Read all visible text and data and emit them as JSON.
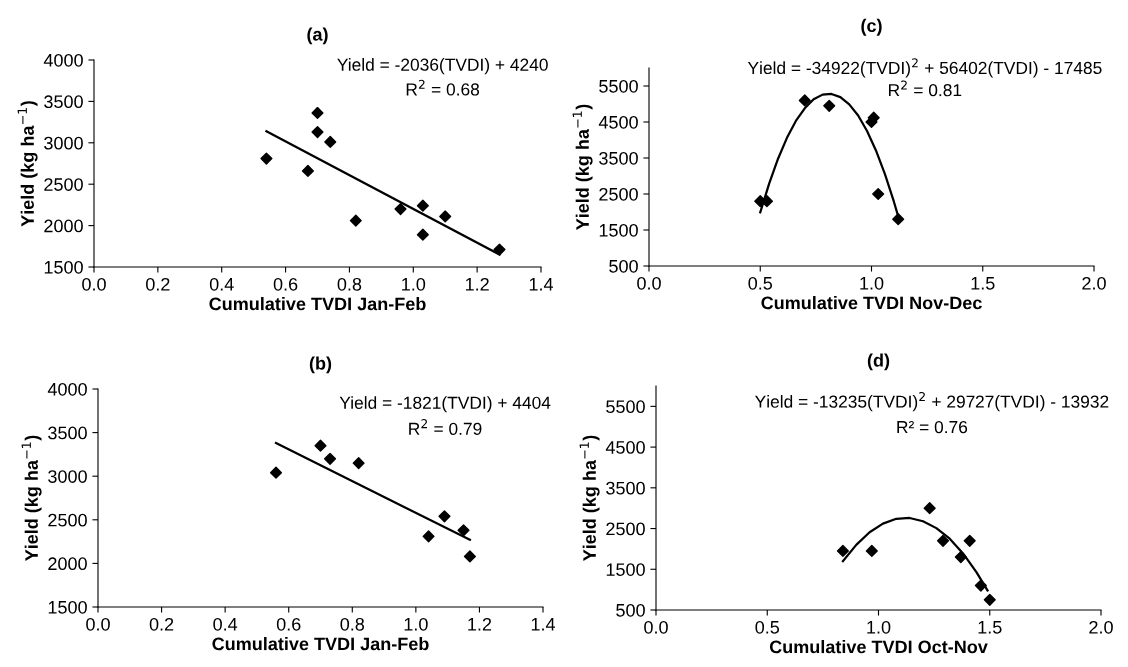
{
  "chart_data": [
    {
      "type": "scatter",
      "title": "(a)",
      "xlabel": "Cumulative TVDI Jan-Feb",
      "ylabel": "Yield (kg ha$^{−1}$)",
      "xlim": [
        0,
        1.4
      ],
      "xticks": [
        {
          "value": 0,
          "label": "0.0"
        },
        {
          "value": 0.2,
          "label": "0.2"
        },
        {
          "value": 0.4,
          "label": "0.4"
        },
        {
          "value": 0.6,
          "label": "0.6"
        },
        {
          "value": 0.8,
          "label": "0.8"
        },
        {
          "value": 1.0,
          "label": "1.0"
        },
        {
          "value": 1.2,
          "label": "1.2"
        },
        {
          "value": 1.4,
          "label": "1.4"
        }
      ],
      "ylim": [
        1500,
        4000
      ],
      "yticks": [
        1500,
        2000,
        2500,
        3000,
        3500,
        4000
      ],
      "grid": false,
      "marker": "diamond",
      "annotations": [
        "Yield = -2036(TVDI) + 4240",
        "R$^{2}$ = 0.68"
      ],
      "series": [
        {
          "color": "#000000",
          "x": [
            0.54,
            0.67,
            0.7,
            0.7,
            0.74,
            0.82,
            0.96,
            1.03,
            1.03,
            1.1,
            1.27
          ],
          "values": [
            2810,
            2660,
            3130,
            3360,
            3010,
            2060,
            2200,
            2240,
            1890,
            2110,
            1710
          ]
        },
        {
          "type": "line",
          "marker": "none",
          "color": "#000000",
          "x": [
            0.54,
            1.27
          ],
          "values": [
            3140,
            1650
          ]
        }
      ]
    },
    {
      "type": "scatter",
      "title": "(b)",
      "xlabel": "Cumulative TVDI Jan-Feb",
      "ylabel": "Yield (kg ha$^{−1}$)",
      "xlim": [
        0,
        1.4
      ],
      "xticks": [
        {
          "value": 0,
          "label": "0.0"
        },
        {
          "value": 0.2,
          "label": "0.2"
        },
        {
          "value": 0.4,
          "label": "0.4"
        },
        {
          "value": 0.6,
          "label": "0.6"
        },
        {
          "value": 0.8,
          "label": "0.8"
        },
        {
          "value": 1.0,
          "label": "1.0"
        },
        {
          "value": 1.2,
          "label": "1.2"
        },
        {
          "value": 1.4,
          "label": "1.4"
        }
      ],
      "ylim": [
        1500,
        4000
      ],
      "yticks": [
        1500,
        2000,
        2500,
        3000,
        3500,
        4000
      ],
      "grid": false,
      "marker": "diamond",
      "annotations": [
        "Yield = -1821(TVDI) + 4404",
        "R$^{2}$ = 0.79"
      ],
      "series": [
        {
          "color": "#000000",
          "x": [
            0.56,
            0.7,
            0.73,
            0.82,
            1.04,
            1.09,
            1.15,
            1.17
          ],
          "values": [
            3040,
            3350,
            3200,
            3150,
            2310,
            2540,
            2380,
            2080
          ]
        },
        {
          "type": "line",
          "marker": "none",
          "color": "#000000",
          "x": [
            0.56,
            1.17
          ],
          "values": [
            3380,
            2270
          ]
        }
      ]
    },
    {
      "type": "scatter",
      "title": "(c)",
      "xlabel": "Cumulative TVDI Nov-Dec",
      "ylabel": "Yield (kg ha$^{−1}$)",
      "xlim": [
        0,
        2.0
      ],
      "xticks": [
        {
          "value": 0,
          "label": "0.0"
        },
        {
          "value": 0.5,
          "label": "0.5"
        },
        {
          "value": 1.0,
          "label": "1.0"
        },
        {
          "value": 1.5,
          "label": "1.5"
        },
        {
          "value": 2.0,
          "label": "2.0"
        }
      ],
      "ylim": [
        500,
        6000
      ],
      "yticks": [
        500,
        1500,
        2500,
        3500,
        4500,
        5500
      ],
      "grid": false,
      "marker": "diamond",
      "annotations": [
        "Yield = -34922(TVDI)$^{2}$ + 56402(TVDI) - 17485",
        "R$^{2}$ = 0.81"
      ],
      "series": [
        {
          "color": "#000000",
          "x": [
            0.5,
            0.53,
            0.7,
            0.81,
            1.0,
            1.01,
            1.03,
            1.12
          ],
          "values": [
            2300,
            2300,
            5100,
            4950,
            4500,
            4620,
            2500,
            1800
          ]
        },
        {
          "type": "line",
          "marker": "none",
          "color": "#000000",
          "x": [
            0.5,
            0.54,
            0.58,
            0.62,
            0.66,
            0.7,
            0.74,
            0.78,
            0.82,
            0.86,
            0.9,
            0.94,
            0.98,
            1.02,
            1.06,
            1.1,
            1.12
          ],
          "values": [
            1990,
            2790,
            3480,
            4060,
            4530,
            4880,
            5130,
            5260,
            5280,
            5190,
            4990,
            4680,
            4250,
            3710,
            3060,
            2300,
            1880
          ]
        }
      ]
    },
    {
      "type": "scatter",
      "title": "(d)",
      "xlabel": "Cumulative TVDI Oct-Nov",
      "ylabel": "Yield (kg ha$^{−1}$)",
      "xlim": [
        0,
        2.0
      ],
      "xticks": [
        {
          "value": 0,
          "label": "0.0"
        },
        {
          "value": 0.5,
          "label": "0.5"
        },
        {
          "value": 1.0,
          "label": "1.0"
        },
        {
          "value": 1.5,
          "label": "1.5"
        },
        {
          "value": 2.0,
          "label": "2.0"
        }
      ],
      "ylim": [
        500,
        6000
      ],
      "yticks": [
        500,
        1500,
        2500,
        3500,
        4500,
        5500
      ],
      "grid": false,
      "marker": "diamond",
      "annotations": [
        "Yield = -13235(TVDI)$^{2}$ + 29727(TVDI) - 13932",
        "R² = 0.76"
      ],
      "series": [
        {
          "color": "#000000",
          "x": [
            0.84,
            0.97,
            1.23,
            1.29,
            1.37,
            1.41,
            1.46,
            1.5
          ],
          "values": [
            1950,
            1950,
            3000,
            2200,
            1800,
            2200,
            1100,
            750
          ]
        },
        {
          "type": "line",
          "marker": "none",
          "color": "#000000",
          "x": [
            0.84,
            0.9,
            0.96,
            1.02,
            1.08,
            1.14,
            1.2,
            1.26,
            1.32,
            1.38,
            1.44,
            1.49
          ],
          "values": [
            1700,
            2100,
            2410,
            2620,
            2740,
            2760,
            2680,
            2510,
            2250,
            1890,
            1430,
            980
          ]
        }
      ]
    }
  ]
}
